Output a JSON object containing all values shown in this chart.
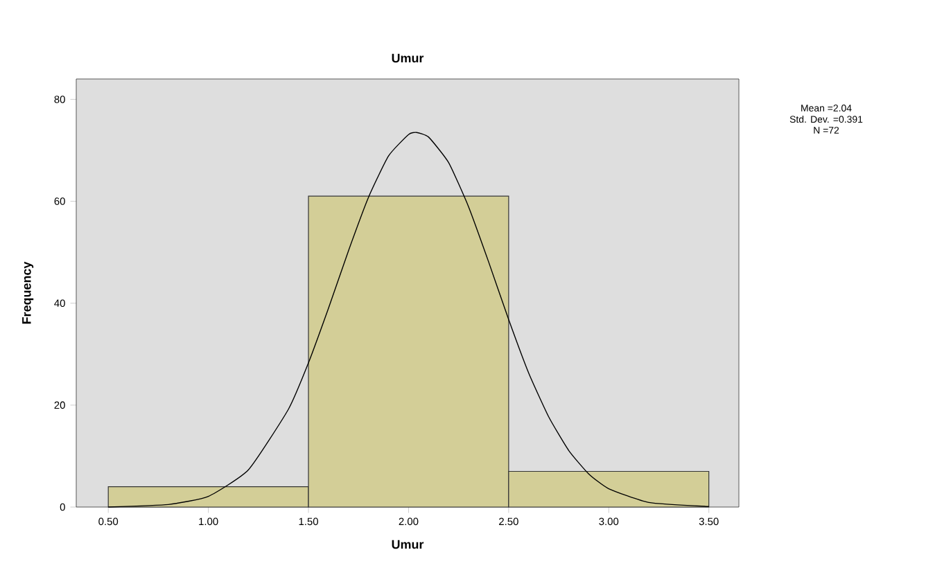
{
  "chart_data": {
    "type": "histogram",
    "title": "Umur",
    "xlabel": "Umur",
    "ylabel": "Frequency",
    "bins": [
      0.5,
      1.5,
      2.5,
      3.5
    ],
    "values": [
      4,
      61,
      7
    ],
    "color": "#d3ce97",
    "series": [
      {
        "type": "line",
        "color": "#000000",
        "x": [
          0.5,
          0.8,
          1.0,
          1.2,
          1.4,
          1.5,
          1.6,
          1.7,
          1.8,
          1.9,
          2.0,
          2.04,
          2.1,
          2.2,
          2.3,
          2.4,
          2.5,
          2.6,
          2.7,
          2.8,
          2.9,
          3.0,
          3.2,
          3.5
        ],
        "values": [
          0,
          0.5,
          2.1,
          7.3,
          19.2,
          28.3,
          39.0,
          50.3,
          60.8,
          68.9,
          73.1,
          73.5,
          72.6,
          67.6,
          58.9,
          48.1,
          36.8,
          26.3,
          17.7,
          11.1,
          6.5,
          3.6,
          0.9,
          0.1
        ]
      }
    ],
    "xlim": [
      0.34,
      3.65
    ],
    "ylim": [
      0,
      84
    ],
    "xticks": [
      {
        "value": 0.5,
        "label": "0.50"
      },
      {
        "value": 1.0,
        "label": "1.00"
      },
      {
        "value": 1.5,
        "label": "1.50"
      },
      {
        "value": 2.0,
        "label": "2.00"
      },
      {
        "value": 2.5,
        "label": "2.50"
      },
      {
        "value": 3.0,
        "label": "3.00"
      },
      {
        "value": 3.5,
        "label": "3.50"
      }
    ],
    "yticks": [
      0,
      20,
      40,
      60,
      80
    ],
    "annotations": [
      "Mean =2.04",
      "Std. Dev. =0.391",
      "N =72"
    ]
  }
}
